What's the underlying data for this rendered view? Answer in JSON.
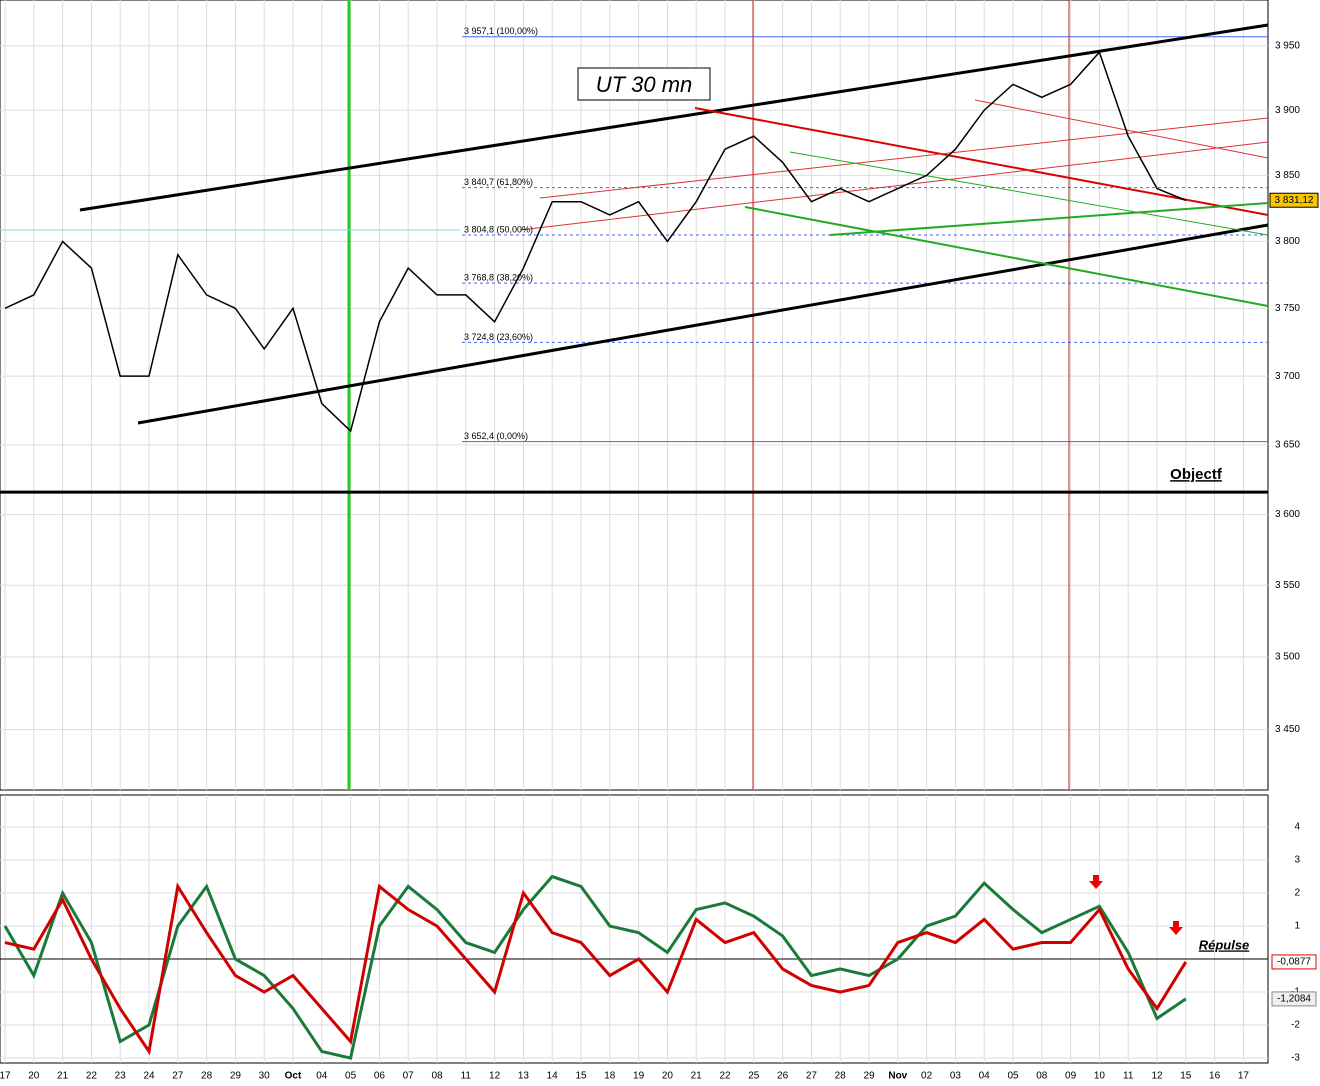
{
  "chart_data": [
    {
      "type": "line",
      "title": "UT 30 mn",
      "log": true,
      "grid": true,
      "categories": [
        "17",
        "20",
        "21",
        "22",
        "23",
        "24",
        "27",
        "28",
        "29",
        "30",
        "Oct",
        "04",
        "05",
        "06",
        "07",
        "08",
        "11",
        "12",
        "13",
        "14",
        "15",
        "18",
        "19",
        "20",
        "21",
        "22",
        "25",
        "26",
        "27",
        "28",
        "29",
        "Nov",
        "02",
        "03",
        "04",
        "05",
        "08",
        "09",
        "10",
        "11",
        "12",
        "15",
        "16",
        "17"
      ],
      "series": [
        {
          "color": "#000000",
          "values": [
            3750,
            3760,
            3800,
            3780,
            3700,
            3700,
            3790,
            3760,
            3750,
            3720,
            3750,
            3680,
            3660,
            3740,
            3780,
            3760,
            3760,
            3740,
            3780,
            3830,
            3830,
            3820,
            3830,
            3800,
            3830,
            3870,
            3880,
            3860,
            3830,
            3840,
            3830,
            3840,
            3850,
            3870,
            3900,
            3920,
            3910,
            3920,
            3945,
            3880,
            3840,
            3831,
            null,
            null
          ]
        }
      ],
      "ylim": [
        3409,
        3986
      ],
      "yticks": [
        {
          "value": 3950,
          "label": "3 950"
        },
        {
          "value": 3900,
          "label": "3 900"
        },
        {
          "value": 3850,
          "label": "3 850"
        },
        {
          "value": 3800,
          "label": "3 800"
        },
        {
          "value": 3750,
          "label": "3 750"
        },
        {
          "value": 3700,
          "label": "3 700"
        },
        {
          "value": 3650,
          "label": "3 650"
        },
        {
          "value": 3600,
          "label": "3 600"
        },
        {
          "value": 3550,
          "label": "3 550"
        },
        {
          "value": 3500,
          "label": "3 500"
        },
        {
          "value": 3450,
          "label": "3 450"
        }
      ],
      "levels": [
        {
          "value": 3957.1,
          "label": "3 957,1 (100,00%)"
        },
        {
          "value": 3840.7,
          "label": "3 840,7 (61,80%)"
        },
        {
          "value": 3804.8,
          "label": "3 804,8 (50,00%)"
        },
        {
          "value": 3768.8,
          "label": "3 768,8 (38,20%)"
        },
        {
          "value": 3724.8,
          "label": "3 724,8 (23,60%)"
        },
        {
          "value": 3652.4,
          "label": "3 652,4 (0,00%)"
        }
      ],
      "objective": {
        "value": 3616,
        "label": "Objectf"
      },
      "last": {
        "value": 3831.12,
        "label": "3 831,12"
      }
    },
    {
      "type": "line",
      "title": "Répulse",
      "grid": true,
      "series": [
        {
          "color": "#1a7a3a",
          "values": [
            1,
            -0.5,
            2,
            0.5,
            -2.5,
            -2,
            1,
            2.2,
            0,
            -0.5,
            -1.5,
            -2.8,
            -3,
            1,
            2.2,
            1.5,
            0.5,
            0.2,
            1.5,
            2.5,
            2.2,
            1,
            0.8,
            0.2,
            1.5,
            1.7,
            1.3,
            0.7,
            -0.5,
            -0.3,
            -0.5,
            0,
            1,
            1.3,
            2.3,
            1.5,
            0.8,
            1.2,
            1.6,
            0.2,
            -1.8,
            -1.2084,
            null,
            null
          ]
        },
        {
          "color": "#d00000",
          "values": [
            0.5,
            0.3,
            1.8,
            0,
            -1.5,
            -2.8,
            2.2,
            0.8,
            -0.5,
            -1,
            -0.5,
            -1.5,
            -2.5,
            2.2,
            1.5,
            1,
            0,
            -1,
            2,
            0.8,
            0.5,
            -0.5,
            0,
            -1,
            1.2,
            0.5,
            0.8,
            -0.3,
            -0.8,
            -1,
            -0.8,
            0.5,
            0.8,
            0.5,
            1.2,
            0.3,
            0.5,
            0.5,
            1.5,
            -0.3,
            -1.5,
            -0.0877,
            null,
            null
          ]
        }
      ],
      "ylim": [
        -3.15,
        4.97
      ],
      "yticks": [
        4,
        3,
        2,
        1,
        -1,
        -2,
        -3
      ],
      "last_labels": [
        {
          "value": -0.0877,
          "label": "-0,0877"
        },
        {
          "value": -1.2084,
          "label": "-1,2084"
        }
      ]
    }
  ]
}
